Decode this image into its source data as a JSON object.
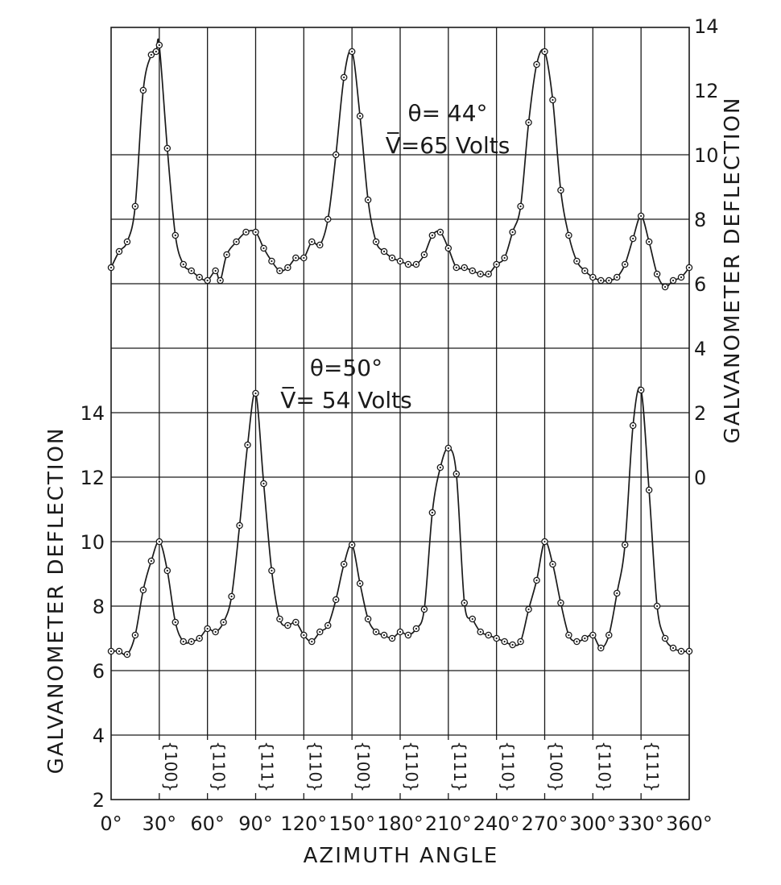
{
  "chart_data": {
    "type": "line",
    "xlabel": "AZIMUTH ANGLE",
    "xlim": [
      0,
      360
    ],
    "x_ticks": [
      "0°",
      "30°",
      "60°",
      "90°",
      "120°",
      "150°",
      "180°",
      "210°",
      "240°",
      "270°",
      "300°",
      "330°",
      "360°"
    ],
    "left_axis": {
      "label": "GALVANOMETER  DEFLECTION",
      "ticks": [
        "2",
        "4",
        "6",
        "8",
        "10",
        "12",
        "14"
      ]
    },
    "right_axis": {
      "label": "GALVANOMETER  DEFLECTION",
      "ticks": [
        "0",
        "2",
        "4",
        "6",
        "8",
        "10",
        "12",
        "14"
      ]
    },
    "grid": true,
    "series": [
      {
        "theta_label": "θ= 44°",
        "voltage_label": "V̅=65 Volts",
        "axis": "right",
        "x": [
          0,
          5,
          10,
          15,
          20,
          25,
          28,
          30,
          35,
          40,
          45,
          50,
          55,
          60,
          65,
          68,
          72,
          78,
          84,
          90,
          95,
          100,
          105,
          110,
          115,
          120,
          125,
          130,
          135,
          140,
          145,
          150,
          155,
          160,
          165,
          170,
          175,
          180,
          185,
          190,
          195,
          200,
          205,
          210,
          215,
          220,
          225,
          230,
          235,
          240,
          245,
          250,
          255,
          260,
          265,
          270,
          275,
          280,
          285,
          290,
          295,
          300,
          305,
          310,
          315,
          320,
          325,
          330,
          335,
          340,
          345,
          350,
          355,
          360
        ],
        "y": [
          6.5,
          7.0,
          7.3,
          8.4,
          12.0,
          13.1,
          13.2,
          13.4,
          10.2,
          7.5,
          6.6,
          6.4,
          6.2,
          6.1,
          6.4,
          6.1,
          6.9,
          7.3,
          7.6,
          7.6,
          7.1,
          6.7,
          6.4,
          6.5,
          6.8,
          6.8,
          7.3,
          7.2,
          8.0,
          10.0,
          12.4,
          13.2,
          11.2,
          8.6,
          7.3,
          7.0,
          6.8,
          6.7,
          6.6,
          6.6,
          6.9,
          7.5,
          7.6,
          7.1,
          6.5,
          6.5,
          6.4,
          6.3,
          6.3,
          6.6,
          6.8,
          7.6,
          8.4,
          11.0,
          12.8,
          13.2,
          11.7,
          8.9,
          7.5,
          6.7,
          6.4,
          6.2,
          6.1,
          6.1,
          6.2,
          6.6,
          7.4,
          8.1,
          7.3,
          6.3,
          5.9,
          6.1,
          6.2,
          6.5
        ]
      },
      {
        "theta_label": "θ=50°",
        "voltage_label": "V̅= 54 Volts",
        "axis": "left",
        "x": [
          0,
          5,
          10,
          15,
          20,
          25,
          30,
          35,
          40,
          45,
          50,
          55,
          60,
          65,
          70,
          75,
          80,
          85,
          90,
          95,
          100,
          105,
          110,
          115,
          120,
          125,
          130,
          135,
          140,
          145,
          150,
          155,
          160,
          165,
          170,
          175,
          180,
          185,
          190,
          195,
          200,
          205,
          210,
          215,
          220,
          225,
          230,
          235,
          240,
          245,
          250,
          255,
          260,
          265,
          270,
          275,
          280,
          285,
          290,
          295,
          300,
          305,
          310,
          315,
          320,
          325,
          330,
          335,
          340,
          345,
          350,
          355,
          360
        ],
        "y": [
          6.6,
          6.6,
          6.5,
          7.1,
          8.5,
          9.4,
          10.0,
          9.1,
          7.5,
          6.9,
          6.9,
          7.0,
          7.3,
          7.2,
          7.5,
          8.3,
          10.5,
          13.0,
          14.6,
          11.8,
          9.1,
          7.6,
          7.4,
          7.5,
          7.1,
          6.9,
          7.2,
          7.4,
          8.2,
          9.3,
          9.9,
          8.7,
          7.6,
          7.2,
          7.1,
          7.0,
          7.2,
          7.1,
          7.3,
          7.9,
          10.9,
          12.3,
          12.9,
          12.1,
          8.1,
          7.6,
          7.2,
          7.1,
          7.0,
          6.9,
          6.8,
          6.9,
          7.9,
          8.8,
          10.0,
          9.3,
          8.1,
          7.1,
          6.9,
          7.0,
          7.1,
          6.7,
          7.1,
          8.4,
          9.9,
          13.6,
          14.7,
          11.6,
          8.0,
          7.0,
          6.7,
          6.6,
          6.6
        ]
      }
    ],
    "annotations": [
      {
        "x": 30,
        "label": "{100}"
      },
      {
        "x": 60,
        "label": "{110}"
      },
      {
        "x": 90,
        "label": "{111}"
      },
      {
        "x": 120,
        "label": "{110}"
      },
      {
        "x": 150,
        "label": "{100}"
      },
      {
        "x": 180,
        "label": "{110}"
      },
      {
        "x": 210,
        "label": "{111}"
      },
      {
        "x": 240,
        "label": "{110}"
      },
      {
        "x": 270,
        "label": "{100}"
      },
      {
        "x": 300,
        "label": "{110}"
      },
      {
        "x": 330,
        "label": "{111}"
      }
    ]
  }
}
